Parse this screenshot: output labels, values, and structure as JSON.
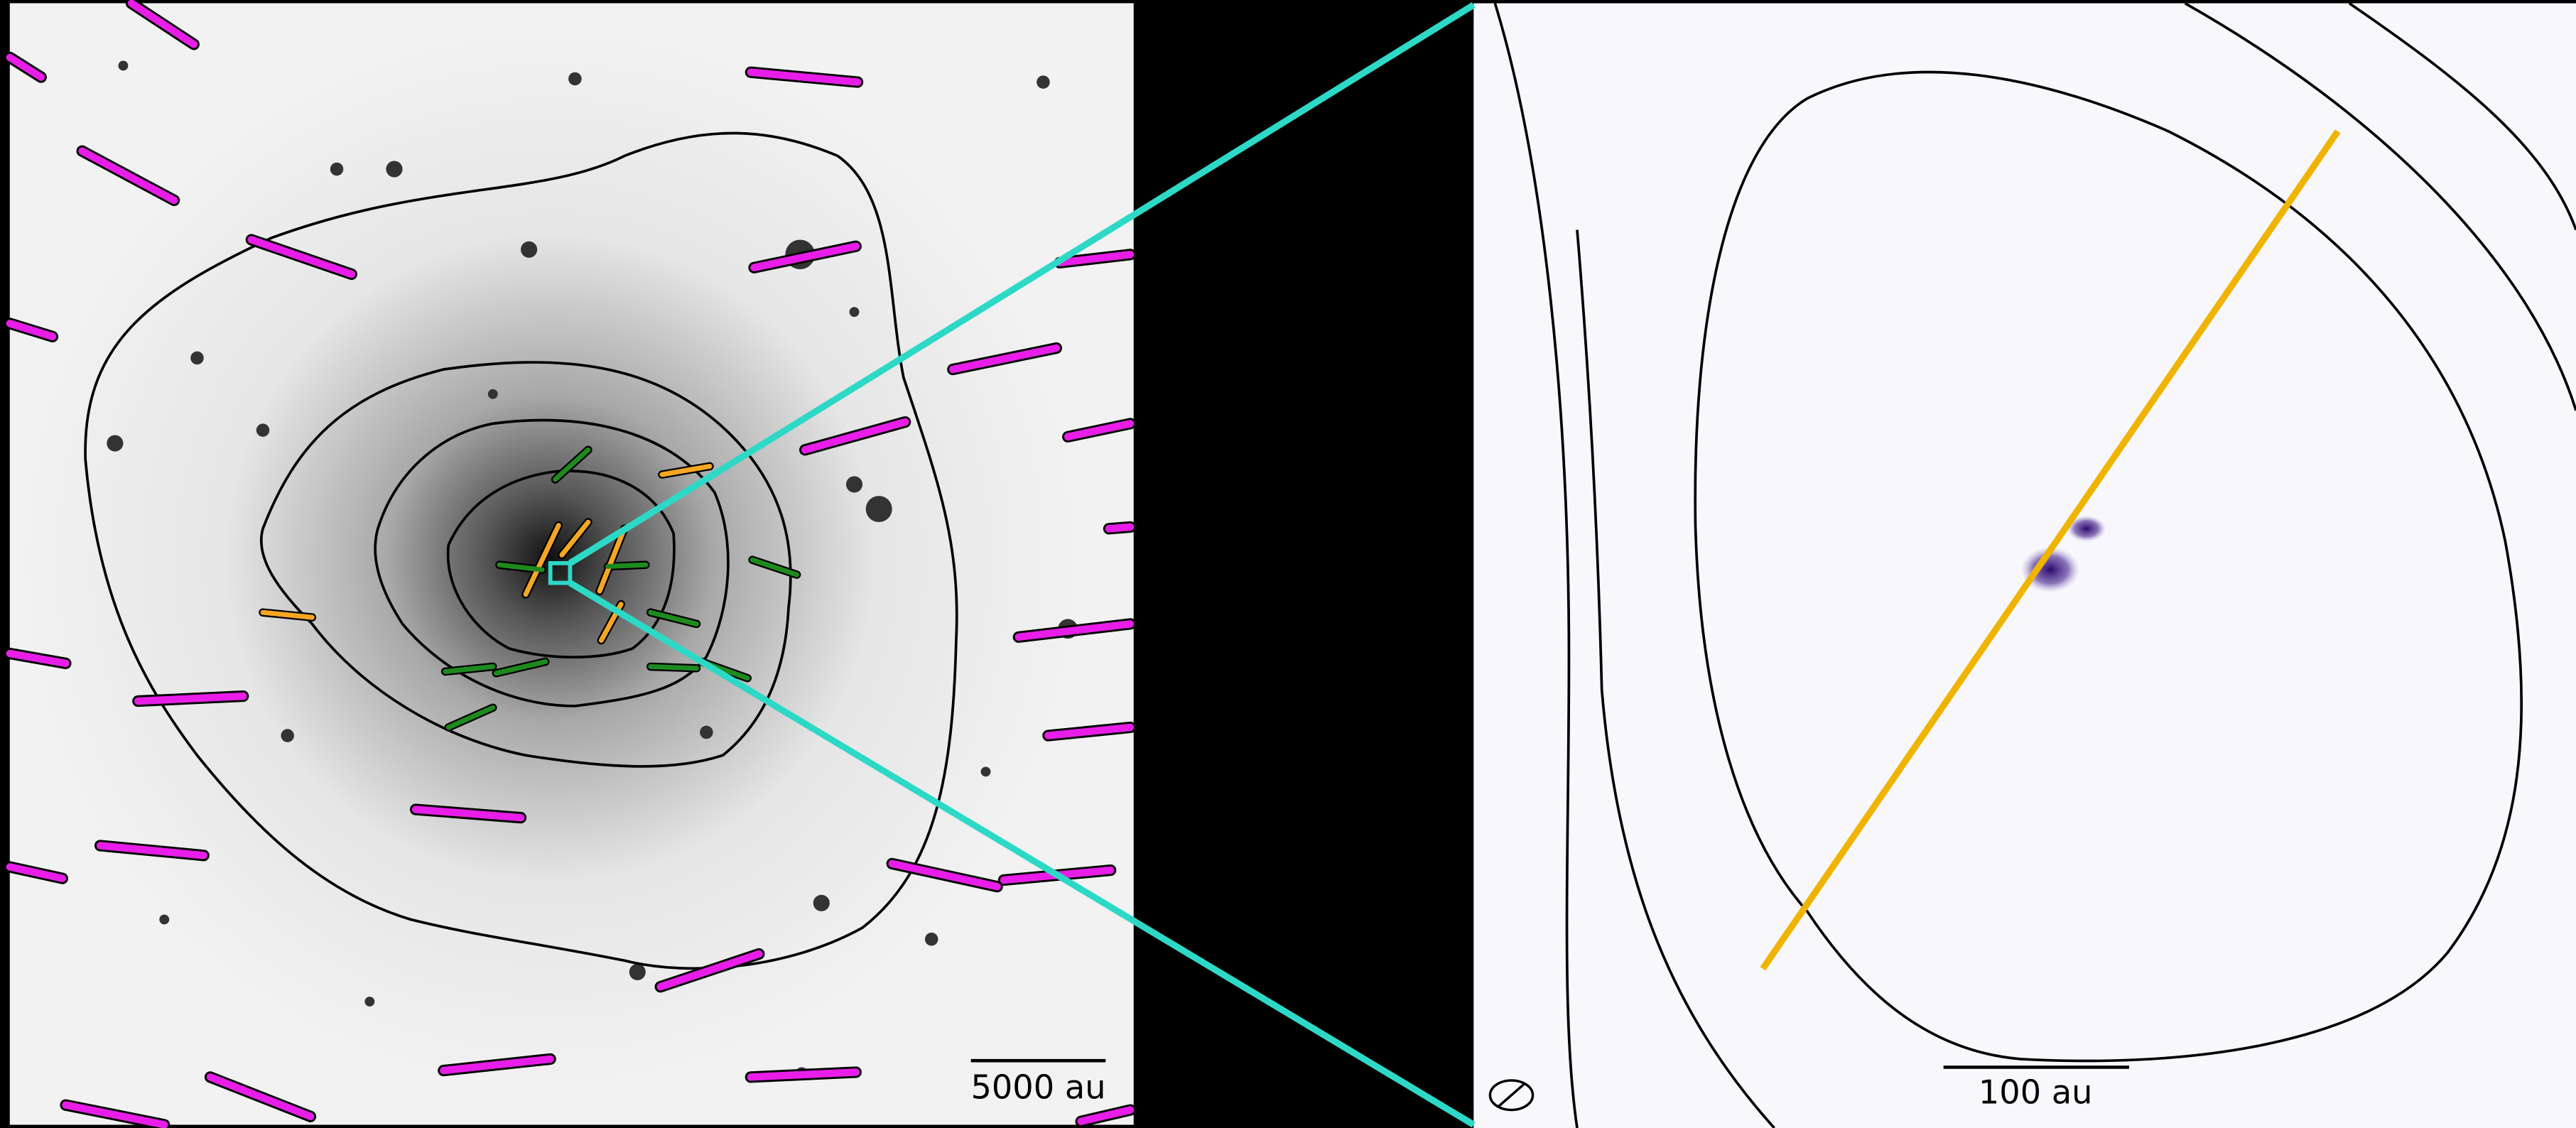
{
  "left_panel": {
    "scale_bar_label": "5000 au"
  },
  "right_panel": {
    "scale_bar_label": "100 au"
  }
}
